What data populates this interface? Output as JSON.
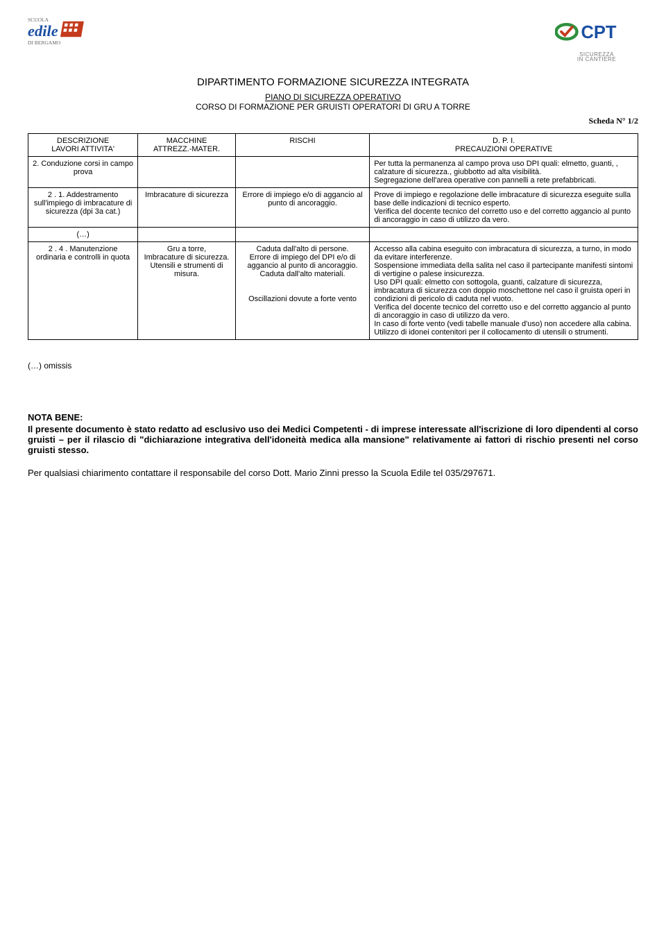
{
  "logos": {
    "left_line1": "SCUOLA",
    "left_brand": "edile",
    "left_line2": "DI BERGAMO",
    "right_brand": "CPT",
    "right_sub1": "SICUREZZA",
    "right_sub2": "IN CANTIERE"
  },
  "title": "DIPARTIMENTO FORMAZIONE SICUREZZA INTEGRATA",
  "subtitle_line1": "PIANO DI SICUREZZA OPERATIVO",
  "subtitle_line2": "CORSO DI FORMAZIONE PER GRUISTI OPERATORI DI GRU A TORRE",
  "scheda": "Scheda N° 1/2",
  "table": {
    "headers": {
      "c1a": "DESCRIZIONE",
      "c1b": "LAVORI ATTIVITA'",
      "c2a": "MACCHINE",
      "c2b": "ATTREZZ.-MATER.",
      "c3": "RISCHI",
      "c4a": "D. P. I.",
      "c4b": "PRECAUZIONI OPERATIVE"
    },
    "rows": [
      {
        "c1": "2. Conduzione corsi in campo prova",
        "c2": "",
        "c3": "",
        "c4": "Per tutta la permanenza al campo prova uso DPI quali: elmetto, guanti, , calzature di sicurezza., giubbotto ad alta visibilità.\nSegregazione dell'area operative con pannelli a rete prefabbricati."
      },
      {
        "c1": "2 . 1. Addestramento sull'impiego di imbracature di sicurezza (dpi 3a cat.)",
        "c2": "Imbracature di sicurezza",
        "c3": "Errore di impiego e/o di aggancio al punto di ancoraggio.",
        "c4": "Prove di impiego e regolazione delle imbracature di sicurezza eseguite sulla base delle indicazioni di tecnico esperto.\nVerifica del docente tecnico del corretto uso e del corretto aggancio al punto di ancoraggio in caso di utilizzo da vero."
      },
      {
        "c1": "(…)",
        "c2": "",
        "c3": "",
        "c4": ""
      },
      {
        "c1": "2 . 4 . Manutenzione ordinaria e controlli in quota",
        "c2": "Gru a torre,\nImbracature di sicurezza.\nUtensili e strumenti di misura.",
        "c3": "Caduta dall'alto di persone.\nErrore di impiego del DPI e/o di aggancio al punto di ancoraggio.\nCaduta dall'alto materiali.\n\nOscillazioni dovute a forte vento",
        "c4": "Accesso alla cabina eseguito con imbracatura di sicurezza, a turno, in modo da evitare interferenze.\nSospensione immediata della salita nel caso il partecipante manifesti sintomi di vertigine o palese insicurezza.\nUso DPI quali: elmetto con sottogola, guanti, calzature di sicurezza, imbracatura di sicurezza con doppio moschettone nel caso il gruista operi in condizioni di pericolo di caduta nel vuoto.\nVerifica del docente tecnico del corretto uso e del corretto aggancio al punto di ancoraggio in caso di utilizzo da vero.\nIn caso di forte vento (vedi tabelle manuale d'uso) non accedere alla cabina.\nUtilizzo di idonei contenitori per il collocamento di utensili o strumenti."
      }
    ]
  },
  "omissis": "(…) omissis",
  "nota_title": "NOTA BENE:",
  "nota_body": "Il presente documento è stato redatto ad esclusivo uso dei Medici Competenti - di imprese interessate all'iscrizione di loro dipendenti al corso gruisti – per il rilascio di \"dichiarazione integrativa dell'idoneità medica alla mansione\" relativamente ai fattori di rischio presenti nel corso gruisti stesso.",
  "footer": "Per qualsiasi chiarimento contattare il responsabile del corso Dott. Mario Zinni presso la Scuola Edile tel 035/297671."
}
